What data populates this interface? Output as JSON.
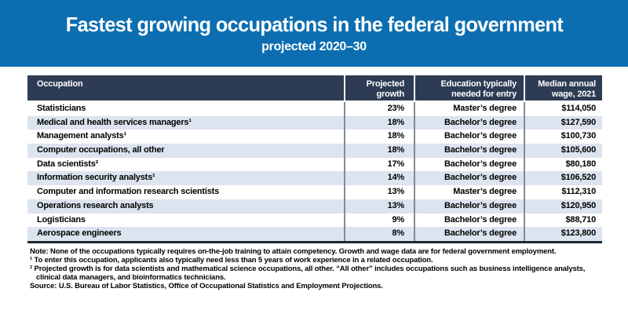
{
  "banner": {
    "title": "Fastest growing occupations in the federal government",
    "subtitle": "projected 2020–30"
  },
  "chart_data": {
    "type": "table",
    "title": "Fastest growing occupations in the federal government",
    "subtitle": "projected 2020–30",
    "columns": [
      "Occupation",
      "Projected growth",
      "Education typically needed for entry",
      "Median annual wage, 2021"
    ],
    "rows": [
      [
        "Statisticians",
        "23%",
        "Master’s degree",
        "$114,050"
      ],
      [
        "Medical and health services managers¹",
        "18%",
        "Bachelor’s degree",
        "$127,590"
      ],
      [
        "Management analysts¹",
        "18%",
        "Bachelor’s degree",
        "$100,730"
      ],
      [
        "Computer occupations, all other",
        "18%",
        "Bachelor’s degree",
        "$105,600"
      ],
      [
        "Data scientists²",
        "17%",
        "Bachelor’s degree",
        "$80,180"
      ],
      [
        "Information security analysts¹",
        "14%",
        "Bachelor’s degree",
        "$106,520"
      ],
      [
        "Computer and information research scientists",
        "13%",
        "Master’s degree",
        "$112,310"
      ],
      [
        "Operations research analysts",
        "13%",
        "Bachelor’s degree",
        "$120,950"
      ],
      [
        "Logisticians",
        "9%",
        "Bachelor’s degree",
        "$88,710"
      ],
      [
        "Aerospace engineers",
        "8%",
        "Bachelor’s degree",
        "$123,800"
      ]
    ],
    "projected_growth_percent": [
      23,
      18,
      18,
      18,
      17,
      14,
      13,
      13,
      9,
      8
    ],
    "median_annual_wage_2021_usd": [
      114050,
      127590,
      100730,
      105600,
      80180,
      106520,
      112310,
      120950,
      88710,
      123800
    ]
  },
  "notes": {
    "note_prefix": "Note:",
    "note_text": " None of the occupations typically requires on-the-job training to attain competency. Growth and wage data are for federal government employment.",
    "footnote1": "¹ To enter this occupation, applicants also typically need less than 5 years of work experience in a related occupation.",
    "footnote2": "² Projected growth is for data scientists and mathematical science occupations, all other. “All other” includes occupations such as business intelligence analysts, clinical data managers, and bioinformatics technicians.",
    "source_prefix": "Source:",
    "source_text": " U.S. Bureau of Labor Statistics, Office of Occupational Statistics and Employment Projections."
  },
  "colors": {
    "banner_bg": "#0c6eb1",
    "header_bg": "#2d3c54",
    "alt_row_bg": "#dce4ef",
    "divider": "#848b96",
    "table_bottom_border": "#1c2733",
    "title_text": "#ffffff",
    "body_text": "#000000"
  }
}
